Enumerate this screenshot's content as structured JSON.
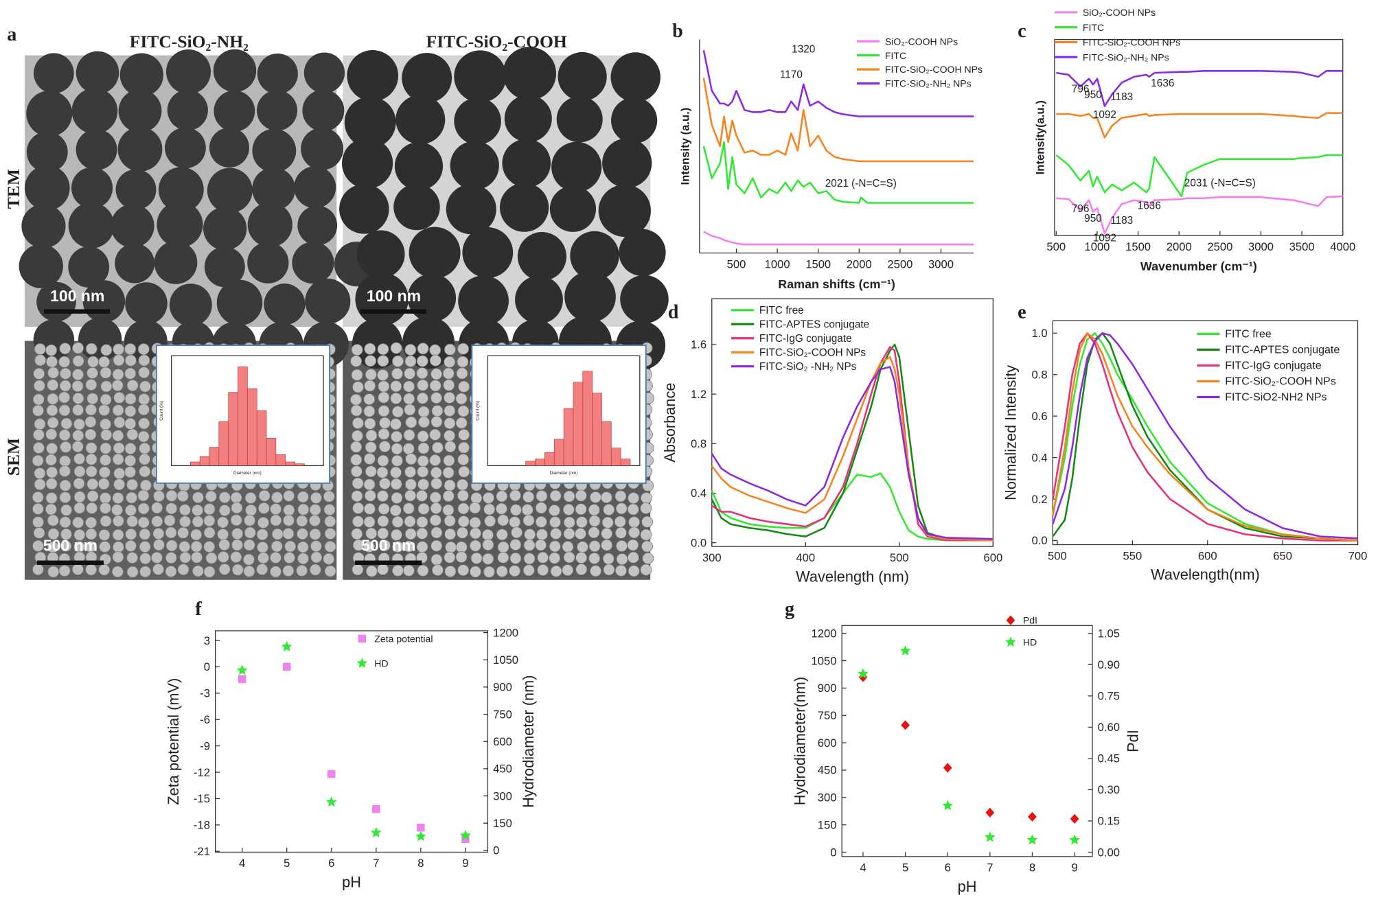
{
  "panel_a": {
    "label": "a",
    "columns": [
      "FITC-SiO₂-NH₂",
      "FITC-SiO₂-COOH"
    ],
    "rows": [
      "TEM",
      "SEM"
    ],
    "scale_bars": [
      "100 nm",
      "100 nm",
      "500 nm",
      "500 nm"
    ]
  },
  "chart_data": [
    {
      "type": "line",
      "label": "b",
      "x_label": "Raman shifts (cm⁻¹)",
      "y_label": "Intensity (a.u.)",
      "xlim": [
        50,
        3400
      ],
      "ylim": [
        0,
        10
      ],
      "xticks": [
        500,
        1000,
        1500,
        2000,
        2500,
        3000
      ],
      "x": [
        100,
        200,
        300,
        350,
        400,
        450,
        500,
        600,
        700,
        800,
        900,
        1000,
        1100,
        1170,
        1250,
        1320,
        1400,
        1500,
        1600,
        1700,
        1800,
        2000,
        2021,
        2100,
        2500,
        3000,
        3400
      ],
      "series": [
        {
          "name": "SiO₂-COOH NPs",
          "color": "#f27ff0",
          "values": [
            1.0,
            0.8,
            0.7,
            0.6,
            0.55,
            0.5,
            0.45,
            0.4,
            0.4,
            0.4,
            0.4,
            0.4,
            0.4,
            0.4,
            0.4,
            0.4,
            0.4,
            0.4,
            0.4,
            0.4,
            0.4,
            0.4,
            0.4,
            0.4,
            0.4,
            0.4,
            0.4
          ]
        },
        {
          "name": "FITC",
          "color": "#33e833",
          "values": [
            5.0,
            3.5,
            4.2,
            5.2,
            3.0,
            4.5,
            3.2,
            2.8,
            3.5,
            2.6,
            3.0,
            2.8,
            3.3,
            2.9,
            3.4,
            3.1,
            3.3,
            2.8,
            2.9,
            2.5,
            2.4,
            2.35,
            2.6,
            2.35,
            2.35,
            2.35,
            2.35
          ]
        },
        {
          "name": "FITC-SiO₂-COOH NPs",
          "color": "#f5841f",
          "values": [
            8.2,
            6.0,
            5.0,
            6.4,
            5.2,
            6.2,
            5.5,
            4.7,
            4.8,
            4.6,
            4.6,
            4.8,
            4.6,
            5.6,
            4.8,
            6.7,
            5.0,
            5.5,
            4.8,
            4.5,
            4.4,
            4.3,
            4.3,
            4.3,
            4.3,
            4.3,
            4.3
          ]
        },
        {
          "name": "FITC-SiO₂-NH₂ NPs",
          "color": "#8a2be2",
          "values": [
            9.5,
            7.6,
            7.0,
            7.0,
            6.9,
            7.1,
            7.6,
            6.7,
            6.6,
            6.6,
            6.7,
            6.6,
            6.6,
            7.1,
            6.7,
            7.9,
            6.9,
            7.1,
            6.8,
            6.6,
            6.5,
            6.4,
            6.4,
            6.4,
            6.4,
            6.4,
            6.4
          ]
        }
      ],
      "annotations": [
        {
          "text": "1170",
          "x": 1170,
          "y": 8.2
        },
        {
          "text": "1320",
          "x": 1320,
          "y": 9.4
        },
        {
          "text": "2021 (-N=C=S)",
          "x": 2021,
          "y": 3.1
        }
      ]
    },
    {
      "type": "line",
      "label": "c",
      "x_label": "Wavenumber (cm⁻¹)",
      "y_label": "Intensity(a.u.)",
      "xlim": [
        480,
        4000
      ],
      "ylim": [
        0,
        10
      ],
      "xticks": [
        500,
        1000,
        1500,
        2000,
        2500,
        3000,
        3500,
        4000
      ],
      "x": [
        500,
        650,
        796,
        900,
        950,
        1000,
        1092,
        1183,
        1300,
        1450,
        1600,
        1636,
        1700,
        2031,
        2100,
        2300,
        2500,
        3000,
        3400,
        3500,
        3700,
        3800,
        4000
      ],
      "series": [
        {
          "name": "SiO₂-COOH NPs",
          "color": "#f27ff0",
          "values": [
            1.9,
            1.85,
            1.3,
            1.8,
            1.2,
            1.4,
            0.1,
            0.9,
            1.6,
            1.8,
            1.7,
            1.5,
            1.8,
            1.85,
            1.9,
            1.9,
            1.95,
            1.95,
            1.8,
            1.7,
            1.5,
            1.95,
            2.0
          ]
        },
        {
          "name": "FITC",
          "color": "#33e833",
          "values": [
            4.1,
            3.6,
            2.8,
            3.3,
            2.5,
            3.0,
            2.2,
            2.6,
            2.3,
            2.7,
            2.2,
            2.4,
            4.0,
            2.0,
            3.2,
            3.6,
            3.9,
            3.9,
            3.9,
            3.95,
            4.0,
            4.1,
            4.1
          ]
        },
        {
          "name": "FITC-SiO₂-COOH NPs",
          "color": "#f5841f",
          "values": [
            6.2,
            6.2,
            6.1,
            6.2,
            6.0,
            6.0,
            5.0,
            5.6,
            6.0,
            6.1,
            6.2,
            6.1,
            6.15,
            6.2,
            6.2,
            6.2,
            6.2,
            6.2,
            6.1,
            6.05,
            6.0,
            6.25,
            6.25
          ]
        },
        {
          "name": "FITC-SiO₂-NH₂ NPs",
          "color": "#8a2be2",
          "values": [
            8.3,
            8.2,
            7.6,
            8.0,
            7.7,
            8.0,
            6.6,
            7.2,
            7.8,
            8.1,
            8.2,
            8.1,
            8.3,
            8.35,
            8.35,
            8.4,
            8.4,
            8.4,
            8.35,
            8.3,
            8.1,
            8.4,
            8.4
          ]
        }
      ],
      "annotations": [
        {
          "text": "796",
          "x": 796,
          "y": 7.3
        },
        {
          "text": "950",
          "x": 950,
          "y": 7.0
        },
        {
          "text": "1092",
          "x": 1092,
          "y": 6.0
        },
        {
          "text": "1183",
          "x": 1300,
          "y": 6.9
        },
        {
          "text": "1636",
          "x": 1800,
          "y": 7.6
        },
        {
          "text": "2031 (-N=C=S)",
          "x": 2500,
          "y": 2.5
        },
        {
          "text": "796",
          "x": 796,
          "y": 1.2
        },
        {
          "text": "950",
          "x": 950,
          "y": 0.7
        },
        {
          "text": "1183",
          "x": 1300,
          "y": 0.6
        },
        {
          "text": "1636",
          "x": 1636,
          "y": 1.35
        },
        {
          "text": "1092",
          "x": 1092,
          "y": -0.3
        }
      ]
    },
    {
      "type": "line",
      "label": "d",
      "x_label": "Wavelength (nm)",
      "y_label": "Absorbance",
      "xlim": [
        300,
        600
      ],
      "ylim": [
        -0.03,
        1.97
      ],
      "xticks": [
        300,
        400,
        500,
        600
      ],
      "yticks": [
        {
          "value": 0,
          "label": "0.0"
        },
        0.4,
        0.8,
        1.2,
        1.6
      ],
      "x": [
        300,
        310,
        320,
        340,
        360,
        380,
        400,
        420,
        440,
        455,
        470,
        480,
        490,
        495,
        500,
        510,
        520,
        530,
        550,
        600
      ],
      "series": [
        {
          "name": "FITC free",
          "color": "#33e833",
          "values": [
            0.42,
            0.25,
            0.2,
            0.15,
            0.13,
            0.12,
            0.12,
            0.2,
            0.4,
            0.55,
            0.53,
            0.56,
            0.45,
            0.35,
            0.25,
            0.1,
            0.05,
            0.03,
            0.02,
            0.02
          ]
        },
        {
          "name": "FITC-APTES conjugate",
          "color": "#138a13",
          "values": [
            0.35,
            0.2,
            0.15,
            0.12,
            0.1,
            0.07,
            0.05,
            0.12,
            0.4,
            0.75,
            1.1,
            1.4,
            1.55,
            1.6,
            1.5,
            0.9,
            0.3,
            0.08,
            0.03,
            0.02
          ]
        },
        {
          "name": "FITC-IgG conjugate",
          "color": "#e8307a",
          "values": [
            0.3,
            0.25,
            0.25,
            0.2,
            0.17,
            0.15,
            0.13,
            0.2,
            0.45,
            0.8,
            1.2,
            1.45,
            1.58,
            1.55,
            1.3,
            0.6,
            0.15,
            0.05,
            0.02,
            0.02
          ]
        },
        {
          "name": "FITC-SiO₂-COOH NPs",
          "color": "#f5841f",
          "values": [
            0.62,
            0.52,
            0.45,
            0.38,
            0.33,
            0.28,
            0.24,
            0.35,
            0.7,
            1.0,
            1.3,
            1.45,
            1.5,
            1.4,
            1.2,
            0.6,
            0.2,
            0.06,
            0.03,
            0.02
          ]
        },
        {
          "name": "FITC-SiO₂ -NH₂ NPs",
          "color": "#8a2be2",
          "values": [
            0.72,
            0.6,
            0.55,
            0.48,
            0.42,
            0.35,
            0.3,
            0.45,
            0.85,
            1.1,
            1.3,
            1.4,
            1.42,
            1.3,
            1.05,
            0.55,
            0.2,
            0.07,
            0.04,
            0.03
          ]
        }
      ]
    },
    {
      "type": "line",
      "label": "e",
      "x_label": "Wavelength(nm)",
      "y_label": "Normalized Intensity",
      "xlim": [
        497,
        700
      ],
      "ylim": [
        -0.02,
        1.06
      ],
      "xticks": [
        500,
        550,
        600,
        650,
        700
      ],
      "yticks": [
        {
          "value": 0,
          "label": "0.0"
        },
        0.2,
        0.4,
        0.6,
        0.8,
        {
          "value": 1,
          "label": "1.0"
        }
      ],
      "x": [
        497,
        505,
        510,
        515,
        520,
        525,
        530,
        535,
        540,
        550,
        560,
        575,
        600,
        625,
        650,
        675,
        700
      ],
      "series": [
        {
          "name": "FITC free",
          "color": "#33e833",
          "values": [
            0.12,
            0.4,
            0.65,
            0.85,
            0.97,
            1.0,
            0.95,
            0.88,
            0.8,
            0.68,
            0.55,
            0.38,
            0.18,
            0.08,
            0.03,
            0.01,
            0.0
          ]
        },
        {
          "name": "FITC-APTES conjugate",
          "color": "#138a13",
          "values": [
            0.02,
            0.1,
            0.3,
            0.6,
            0.85,
            0.97,
            1.0,
            0.95,
            0.85,
            0.65,
            0.5,
            0.34,
            0.15,
            0.06,
            0.02,
            0.01,
            0.0
          ]
        },
        {
          "name": "FITC-IgG conjugate",
          "color": "#e8307a",
          "values": [
            0.2,
            0.55,
            0.8,
            0.95,
            1.0,
            0.95,
            0.85,
            0.73,
            0.62,
            0.45,
            0.33,
            0.2,
            0.08,
            0.03,
            0.01,
            0.0,
            0.0
          ]
        },
        {
          "name": "FITC-SiO₂-COOH NPs",
          "color": "#f5841f",
          "values": [
            0.12,
            0.45,
            0.72,
            0.92,
            1.0,
            0.97,
            0.9,
            0.8,
            0.7,
            0.55,
            0.45,
            0.32,
            0.15,
            0.07,
            0.03,
            0.01,
            0.0
          ]
        },
        {
          "name": "FITC-SiO2-NH2 NPs",
          "color": "#8a2be2",
          "values": [
            0.08,
            0.25,
            0.45,
            0.7,
            0.88,
            0.96,
            1.0,
            0.99,
            0.95,
            0.85,
            0.73,
            0.55,
            0.3,
            0.15,
            0.06,
            0.02,
            0.01
          ]
        }
      ]
    },
    {
      "type": "scatter",
      "label": "f",
      "x_label": "pH",
      "y_label": "Zeta potential (mV)",
      "y2_label": "Hydrodiameter (nm)",
      "xlim": [
        3.4,
        9.5
      ],
      "ylim": [
        -21.1,
        4.1
      ],
      "y2lim": [
        -10,
        1210
      ],
      "xticks": [
        4,
        5,
        6,
        7,
        8,
        9
      ],
      "yticks": [
        3,
        0,
        -3,
        -6,
        -9,
        -12,
        -15,
        -18,
        -21
      ],
      "y2ticks": [
        0,
        150,
        300,
        450,
        600,
        750,
        900,
        1050,
        1200
      ],
      "x": [
        4,
        5,
        6,
        7,
        8,
        9
      ],
      "series": [
        {
          "name": "Zeta potential",
          "color": "#ee82ee",
          "marker": "square",
          "values": [
            -1.4,
            0,
            -12.2,
            -16.2,
            -18.3,
            -19.6
          ]
        },
        {
          "name": "HD",
          "color": "#33e833",
          "marker": "star",
          "axis": "y2",
          "values": [
            992,
            1122,
            266,
            97,
            77,
            82
          ]
        }
      ]
    },
    {
      "type": "scatter",
      "label": "g",
      "x_label": "pH",
      "y_label": "Hydrodiameter(nm)",
      "y2_label": "PdI",
      "xlim": [
        3.5,
        9.42
      ],
      "ylim": [
        -24,
        1243
      ],
      "y2lim": [
        -0.021,
        1.088
      ],
      "xticks": [
        4,
        5,
        6,
        7,
        8,
        9
      ],
      "yticks": [
        0,
        150,
        300,
        450,
        600,
        750,
        900,
        1050,
        1200
      ],
      "y2ticks": [
        {
          "value": 0,
          "label": "0.00"
        },
        {
          "value": 0.15,
          "label": "0.15"
        },
        {
          "value": 0.3,
          "label": "0.30"
        },
        {
          "value": 0.45,
          "label": "0.45"
        },
        {
          "value": 0.6,
          "label": "0.60"
        },
        {
          "value": 0.75,
          "label": "0.75"
        },
        {
          "value": 0.9,
          "label": "0.90"
        },
        {
          "value": 1.05,
          "label": "1.05"
        }
      ],
      "x": [
        4,
        5,
        6,
        7,
        8,
        9
      ],
      "series": [
        {
          "name": "PdI",
          "color": "#e81010",
          "marker": "diamond",
          "axis": "y2",
          "values": [
            0.84,
            0.61,
            0.405,
            0.19,
            0.17,
            0.16
          ]
        },
        {
          "name": "HD",
          "color": "#33e833",
          "marker": "star",
          "values": [
            978,
            1104,
            255,
            82,
            67,
            67
          ]
        }
      ]
    },
    {
      "type": "histogram",
      "x_label": "Diameter (nm)",
      "y_label": "Count (%)",
      "xlim": [
        60,
        140
      ],
      "ylim": [
        0,
        60
      ],
      "bins": [
        70,
        75,
        80,
        85,
        90,
        95,
        100,
        105,
        110,
        115,
        120,
        125,
        130
      ],
      "counts": [
        2,
        5,
        10,
        24,
        40,
        54,
        42,
        30,
        15,
        6,
        2,
        1
      ],
      "color": "#f28080"
    },
    {
      "type": "histogram",
      "x_label": "Diameter (nm)",
      "y_label": "Count (%)",
      "xlim": [
        60,
        140
      ],
      "ylim": [
        0,
        50
      ],
      "bins": [
        80,
        85,
        90,
        95,
        100,
        105,
        110,
        115,
        120,
        125,
        130,
        135
      ],
      "counts": [
        2,
        3,
        6,
        12,
        26,
        38,
        43,
        33,
        20,
        8,
        3
      ],
      "color": "#f28080"
    }
  ]
}
